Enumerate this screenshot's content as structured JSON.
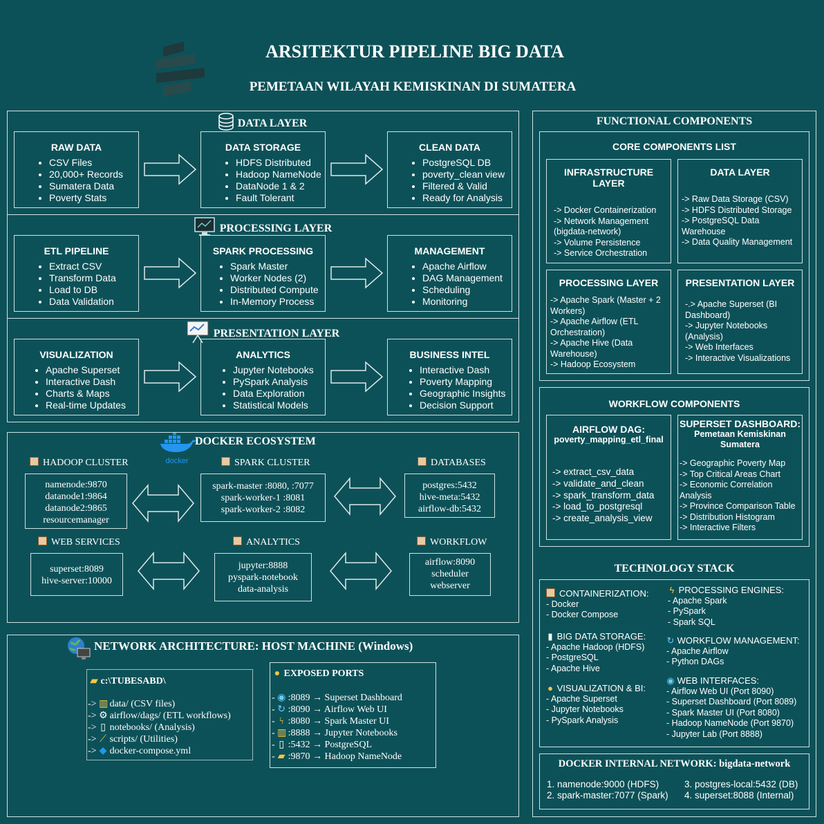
{
  "header": {
    "title": "ARSITEKTUR PIPELINE BIG DATA",
    "subtitle": "PEMETAAN WILAYAH KEMISKINAN DI SUMATERA"
  },
  "data_layer": {
    "title": "DATA LAYER",
    "boxes": [
      {
        "title": "RAW DATA",
        "items": [
          "CSV Files",
          "20,000+ Records",
          "Sumatera Data",
          "Poverty Stats"
        ]
      },
      {
        "title": "DATA STORAGE",
        "items": [
          "HDFS Distributed",
          "Hadoop NameNode",
          "DataNode 1 & 2",
          "Fault Tolerant"
        ]
      },
      {
        "title": "CLEAN DATA",
        "items": [
          "PostgreSQL DB",
          "poverty_clean view",
          "Filtered & Valid",
          "Ready for Analysis"
        ]
      }
    ]
  },
  "processing_layer": {
    "title": "PROCESSING LAYER",
    "boxes": [
      {
        "title": "ETL PIPELINE",
        "items": [
          "Extract CSV",
          "Transform Data",
          "Load to DB",
          "Data Validation"
        ]
      },
      {
        "title": "SPARK PROCESSING",
        "items": [
          "Spark Master",
          "Worker Nodes (2)",
          "Distributed Compute",
          "In-Memory Process"
        ]
      },
      {
        "title": "MANAGEMENT",
        "items": [
          "Apache Airflow",
          "DAG Management",
          "Scheduling",
          "Monitoring"
        ]
      }
    ]
  },
  "presentation_layer": {
    "title": "PRESENTATION LAYER",
    "boxes": [
      {
        "title": "VISUALIZATION",
        "items": [
          "Apache Superset",
          "Interactive Dash",
          "Charts & Maps",
          "Real-time Updates"
        ]
      },
      {
        "title": "ANALYTICS",
        "items": [
          "Jupyter Notebooks",
          "PySpark Analysis",
          "Data Exploration",
          "Statistical Models"
        ]
      },
      {
        "title": "BUSINESS INTEL",
        "items": [
          "Interactive Dash",
          "Poverty Mapping",
          "Geographic Insights",
          "Decision Support"
        ]
      }
    ]
  },
  "docker": {
    "title": "DOCKER ECOSYSTEM",
    "logo_text": "docker",
    "groups": [
      {
        "label": "HADOOP CLUSTER",
        "lines": [
          "namenode:9870",
          "datanode1:9864",
          "datanode2:9865",
          "resourcemanager"
        ]
      },
      {
        "label": "SPARK CLUSTER",
        "lines": [
          "spark-master :8080, :7077",
          "spark-worker-1 :8081",
          "spark-worker-2 :8082"
        ]
      },
      {
        "label": "DATABASES",
        "lines": [
          "postgres:5432",
          "hive-meta:5432",
          "airflow-db:5432"
        ]
      },
      {
        "label": "WEB SERVICES",
        "lines": [
          "superset:8089",
          "hive-server:10000"
        ]
      },
      {
        "label": "ANALYTICS",
        "lines": [
          "jupyter:8888",
          "pyspark-notebook",
          "data-analysis"
        ]
      },
      {
        "label": "WORKFLOW",
        "lines": [
          "airflow:8090",
          "scheduler",
          "webserver"
        ]
      }
    ]
  },
  "network": {
    "title": "NETWORK ARCHITECTURE: HOST MACHINE (Windows)",
    "folder": {
      "path": "c:\\TUBESABD\\",
      "items": [
        {
          "icon": "chart-icon",
          "text": "data/ (CSV files)"
        },
        {
          "icon": "gear-icon",
          "text": "airflow/dags/ (ETL workflows)"
        },
        {
          "icon": "notebook-icon",
          "text": "notebooks/ (Analysis)"
        },
        {
          "icon": "wrench-icon",
          "text": "scripts/ (Utilities)"
        },
        {
          "icon": "docker-icon",
          "text": "docker-compose.yml"
        }
      ]
    },
    "ports": {
      "title": "EXPOSED PORTS",
      "items": [
        {
          "icon": "globe-icon",
          "text": ":8089 → Superset Dashboard"
        },
        {
          "icon": "refresh-icon",
          "text": ":8090 → Airflow Web UI"
        },
        {
          "icon": "lightning-icon",
          "text": ":8080 → Spark Master UI"
        },
        {
          "icon": "chart-icon",
          "text": ":8888 → Jupyter Notebooks"
        },
        {
          "icon": "database-icon",
          "text": ":5432 → PostgreSQL"
        },
        {
          "icon": "folder-icon",
          "text": ":9870 → Hadoop NameNode"
        }
      ]
    }
  },
  "functional": {
    "title": "FUNCTIONAL COMPONENTS",
    "core": {
      "title": "CORE COMPONENTS LIST",
      "infrastructure": {
        "title": "INFRASTRUCTURE LAYER",
        "lines": [
          "-> Docker Containerization",
          "-> Network Management (bigdata-network)",
          "-> Volume Persistence",
          "-> Service Orchestration"
        ]
      },
      "data": {
        "title": "DATA LAYER",
        "lines": [
          "-> Raw Data Storage (CSV)",
          "-> HDFS Distributed Storage",
          "-> PostgreSQL Data Warehouse",
          "-> Data Quality Management"
        ]
      },
      "processing": {
        "title": "PROCESSING LAYER",
        "lines": [
          "-> Apache Spark (Master + 2 Workers)",
          "-> Apache Airflow (ETL Orchestration)",
          "-> Apache Hive (Data Warehouse)",
          "-> Hadoop Ecosystem"
        ]
      },
      "presentation": {
        "title": "PRESENTATION LAYER",
        "lines": [
          "-.> Apache Superset (BI Dashboard)",
          "-> Jupyter Notebooks (Analysis)",
          "-> Web Interfaces",
          "-> Interactive Visualizations"
        ]
      }
    },
    "workflow": {
      "title": "WORKFLOW COMPONENTS",
      "airflow": {
        "title": "AIRFLOW DAG:",
        "subtitle": "poverty_mapping_etl_final",
        "lines": [
          "-> extract_csv_data",
          "-> validate_and_clean",
          "-> spark_transform_data",
          "-> load_to_postgresql",
          "-> create_analysis_view"
        ]
      },
      "superset": {
        "title": "SUPERSET DASHBOARD:",
        "subtitle": "Pemetaan Kemiskinan Sumatera",
        "lines": [
          "-> Geographic Poverty Map",
          "-> Top Critical Areas Chart",
          "-> Economic Correlation Analysis",
          "-> Province Comparison Table",
          "-> Distribution Histogram",
          "-> Interactive Filters"
        ]
      }
    }
  },
  "tech": {
    "title": "TECHNOLOGY STACK",
    "containerization": {
      "title": "CONTAINERIZATION:",
      "items": [
        "- Docker",
        "- Docker Compose"
      ]
    },
    "storage": {
      "title": "BIG DATA STORAGE:",
      "items": [
        "- Apache Hadoop (HDFS)",
        "- PostgreSQL",
        "- Apache Hive"
      ]
    },
    "visualization": {
      "title": "VISUALIZATION & BI:",
      "items": [
        "- Apache Superset",
        "- Jupyter Notebooks",
        "- PySpark Analysis"
      ]
    },
    "processing": {
      "title": "PROCESSING ENGINES:",
      "items": [
        "- Apache Spark",
        "- PySpark",
        "- Spark SQL"
      ]
    },
    "workflow": {
      "title": "WORKFLOW MANAGEMENT:",
      "items": [
        "- Apache Airflow",
        "- Python DAGs"
      ]
    },
    "web": {
      "title": "WEB INTERFACES:",
      "items": [
        "- Airflow Web UI (Port 8090)",
        "- Superset Dashboard (Port 8089)",
        "- Spark Master UI (Port 8080)",
        "- Hadoop NameNode (Port 9870)",
        "- Jupyter Lab (Port 8888)"
      ]
    }
  },
  "docker_net": {
    "title": "DOCKER INTERNAL NETWORK: bigdata-network",
    "items": [
      "1. namenode:9000 (HDFS)",
      "2. spark-master:7077 (Spark)",
      "3. postgres-local:5432 (DB)",
      "4. superset:8088 (Internal)"
    ]
  }
}
